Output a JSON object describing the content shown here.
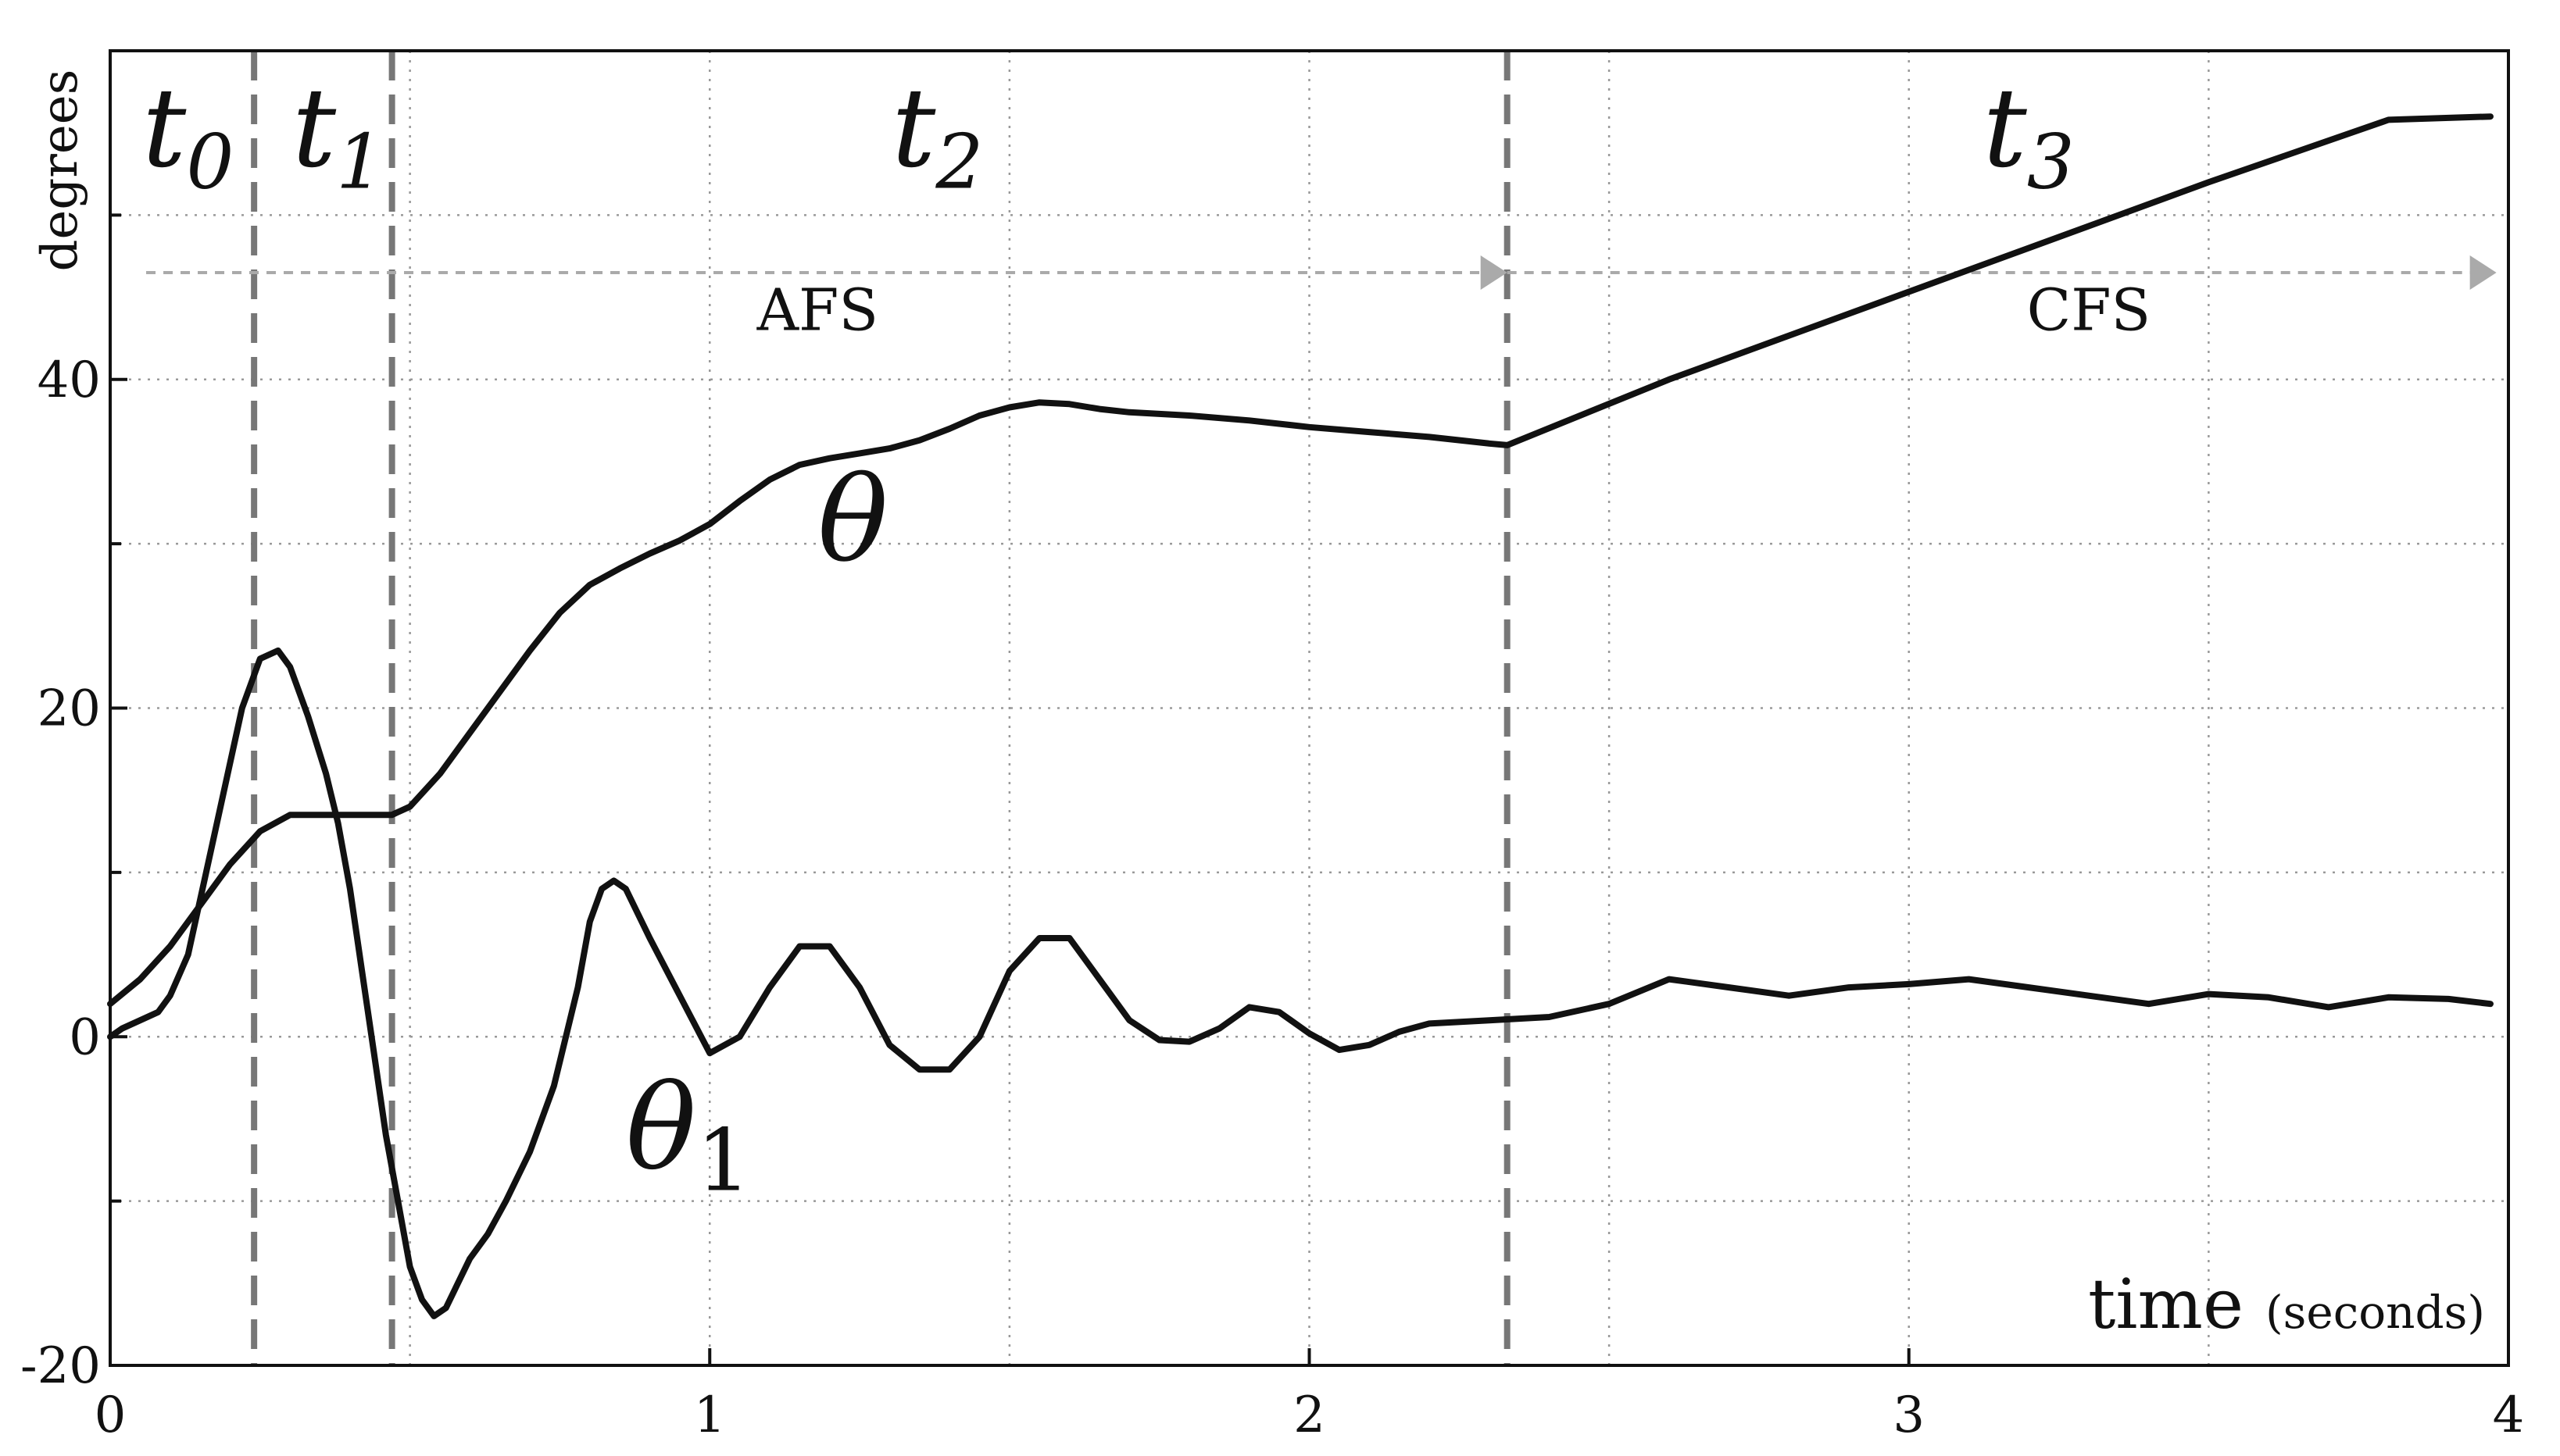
{
  "chart_data": {
    "type": "line",
    "xlabel_main": "time",
    "xlabel_unit": "(seconds)",
    "ylabel": "degrees",
    "xlim": [
      0,
      4
    ],
    "ylim": [
      -20,
      60
    ],
    "x_ticks": [
      {
        "value": 0,
        "label": "0"
      },
      {
        "value": 1,
        "label": "1"
      },
      {
        "value": 2,
        "label": "2"
      },
      {
        "value": 3,
        "label": "3"
      },
      {
        "value": 4,
        "label": "4"
      }
    ],
    "y_ticks": [
      {
        "value": -20,
        "label": "-20"
      },
      {
        "value": 0,
        "label": "0"
      },
      {
        "value": 20,
        "label": "20"
      },
      {
        "value": 40,
        "label": "40"
      }
    ],
    "x_grid": [
      0.5,
      1,
      1.5,
      2,
      2.5,
      3,
      3.5
    ],
    "y_grid": [
      -10,
      0,
      10,
      20,
      30,
      40,
      50
    ],
    "grid": true,
    "phase_boundaries": [
      0.24,
      0.47,
      2.33
    ],
    "phases": [
      {
        "base": "t",
        "sub": "0",
        "x": 0.13,
        "y": 53
      },
      {
        "base": "t",
        "sub": "1",
        "x": 0.38,
        "y": 53
      },
      {
        "base": "t",
        "sub": "2",
        "x": 1.38,
        "y": 53
      },
      {
        "base": "t",
        "sub": "3",
        "x": 3.2,
        "y": 53
      }
    ],
    "arrows": [
      {
        "label": "AFS",
        "x_start": 0.06,
        "x_end": 2.33,
        "y": 46.5,
        "label_x": 1.18,
        "label_y": 43
      },
      {
        "label": "CFS",
        "x_start": 2.33,
        "x_end": 3.98,
        "y": 46.5,
        "label_x": 3.3,
        "label_y": 43
      }
    ],
    "series": [
      {
        "name": "θ",
        "label_base": "θ",
        "label_sub": "",
        "label_x": 1.18,
        "label_y": 29,
        "x": [
          0,
          0.05,
          0.1,
          0.15,
          0.2,
          0.25,
          0.3,
          0.35,
          0.4,
          0.45,
          0.47,
          0.5,
          0.55,
          0.6,
          0.65,
          0.7,
          0.75,
          0.8,
          0.85,
          0.9,
          0.95,
          1.0,
          1.05,
          1.1,
          1.15,
          1.2,
          1.25,
          1.3,
          1.35,
          1.4,
          1.45,
          1.5,
          1.55,
          1.6,
          1.65,
          1.7,
          1.8,
          1.9,
          2.0,
          2.1,
          2.2,
          2.3,
          2.33,
          2.6,
          2.9,
          3.2,
          3.5,
          3.8,
          3.97
        ],
        "y": [
          2,
          3.5,
          5.5,
          8,
          10.5,
          12.5,
          13.5,
          13.5,
          13.5,
          13.5,
          13.5,
          14,
          16,
          18.5,
          21,
          23.5,
          25.8,
          27.5,
          28.5,
          29.4,
          30.2,
          31.2,
          32.6,
          33.9,
          34.8,
          35.2,
          35.5,
          35.8,
          36.3,
          37,
          37.8,
          38.3,
          38.6,
          38.5,
          38.2,
          38,
          37.8,
          37.5,
          37.1,
          36.8,
          36.5,
          36.1,
          36,
          40,
          44,
          48,
          52,
          55.8,
          56
        ]
      },
      {
        "name": "θ1",
        "label_base": "θ",
        "label_sub": "1",
        "label_x": 0.86,
        "label_y": -8,
        "x": [
          0,
          0.02,
          0.05,
          0.08,
          0.1,
          0.13,
          0.16,
          0.19,
          0.22,
          0.25,
          0.28,
          0.3,
          0.33,
          0.36,
          0.38,
          0.4,
          0.42,
          0.44,
          0.46,
          0.48,
          0.5,
          0.52,
          0.54,
          0.56,
          0.58,
          0.6,
          0.63,
          0.66,
          0.7,
          0.74,
          0.78,
          0.8,
          0.82,
          0.84,
          0.86,
          0.9,
          0.95,
          1.0,
          1.05,
          1.1,
          1.15,
          1.2,
          1.25,
          1.3,
          1.35,
          1.4,
          1.45,
          1.5,
          1.55,
          1.6,
          1.65,
          1.7,
          1.75,
          1.8,
          1.85,
          1.9,
          1.95,
          2.0,
          2.05,
          2.1,
          2.15,
          2.2,
          2.3,
          2.4,
          2.5,
          2.6,
          2.7,
          2.8,
          2.9,
          3.0,
          3.1,
          3.2,
          3.3,
          3.4,
          3.5,
          3.6,
          3.7,
          3.8,
          3.9,
          3.97
        ],
        "y": [
          0,
          0.5,
          1,
          1.5,
          2.5,
          5,
          10,
          15,
          20,
          23,
          23.5,
          22.5,
          19.5,
          16,
          13,
          9,
          4,
          -1,
          -6,
          -10,
          -14,
          -16,
          -17,
          -16.5,
          -15,
          -13.5,
          -12,
          -10,
          -7,
          -3,
          3,
          7,
          9,
          9.5,
          9,
          6,
          2.5,
          -1,
          0,
          3,
          5.5,
          5.5,
          3,
          -0.5,
          -2,
          -2,
          0,
          4,
          6,
          6,
          3.5,
          1,
          -0.2,
          -0.3,
          0.5,
          1.8,
          1.5,
          0.2,
          -0.8,
          -0.5,
          0.3,
          0.8,
          1,
          1.2,
          2,
          3.5,
          3,
          2.5,
          3,
          3.2,
          3.5,
          3,
          2.5,
          2,
          2.6,
          2.4,
          1.8,
          2.4,
          2.3,
          2
        ]
      }
    ]
  }
}
